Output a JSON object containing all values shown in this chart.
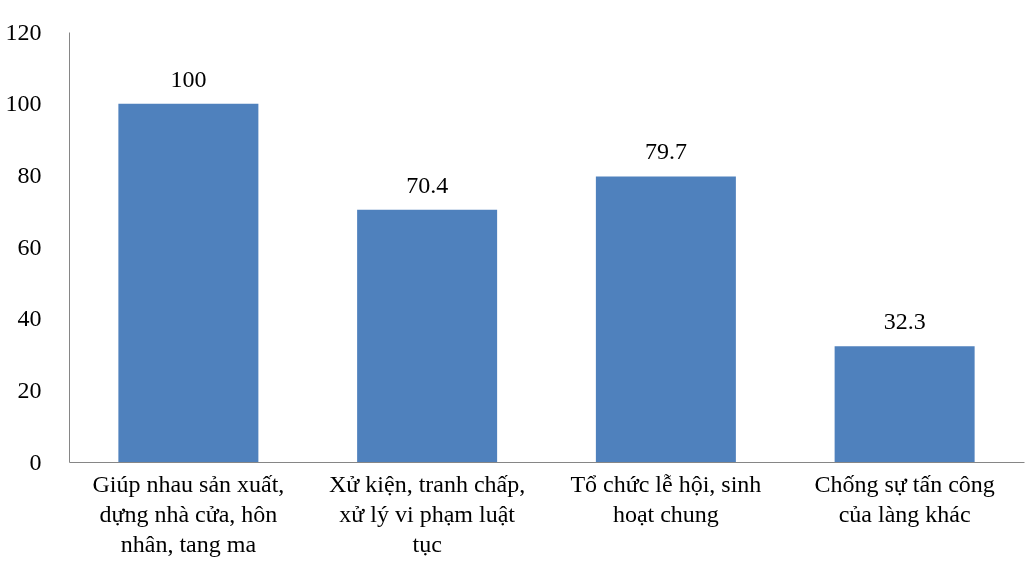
{
  "chart_data": {
    "type": "bar",
    "categories": [
      "Giúp nhau sản xuất, dựng nhà cửa, hôn nhân, tang ma",
      "Xử kiện, tranh chấp, xử lý vi phạm luật tục",
      "Tổ chức lễ hội, sinh hoạt chung",
      "Chống sự tấn công của làng khác"
    ],
    "values": [
      100,
      70.4,
      79.7,
      32.3
    ],
    "color": "#4f81bd",
    "ylim": [
      0,
      120
    ],
    "yticks": [
      0,
      20,
      40,
      60,
      80,
      100,
      120
    ],
    "grid": false,
    "data_labels": true
  }
}
